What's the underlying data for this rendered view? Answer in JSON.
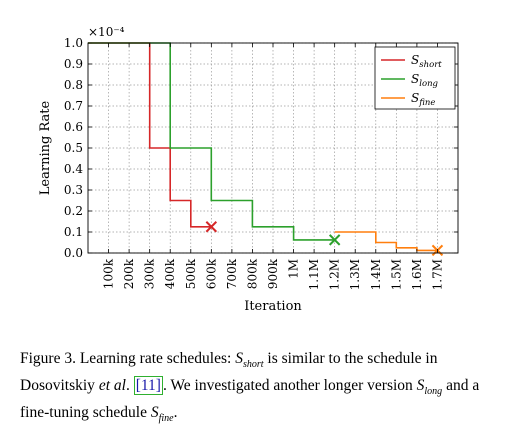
{
  "chart_data": {
    "type": "line",
    "step": true,
    "ylabel": "Learning Rate",
    "xlabel": "Iteration",
    "scale_label": "×10⁻⁴",
    "ylim": [
      0,
      1.0
    ],
    "xlim": [
      0,
      1800000
    ],
    "yticks": [
      0.0,
      0.1,
      0.2,
      0.3,
      0.4,
      0.5,
      0.6,
      0.7,
      0.8,
      0.9,
      1.0
    ],
    "ytick_labels": [
      "0.0",
      "0.1",
      "0.2",
      "0.3",
      "0.4",
      "0.5",
      "0.6",
      "0.7",
      "0.8",
      "0.9",
      "1.0"
    ],
    "xticks": [
      100000,
      200000,
      300000,
      400000,
      500000,
      600000,
      700000,
      800000,
      900000,
      1000000,
      1100000,
      1200000,
      1300000,
      1400000,
      1500000,
      1600000,
      1700000
    ],
    "xtick_labels": [
      "100k",
      "200k",
      "300k",
      "400k",
      "500k",
      "600k",
      "700k",
      "800k",
      "900k",
      "1M",
      "1.1M",
      "1.2M",
      "1.3M",
      "1.4M",
      "1.5M",
      "1.6M",
      "1.7M"
    ],
    "grid": true,
    "legend_position": "top-right",
    "series": [
      {
        "name": "S_short",
        "legend_main": "S",
        "legend_sub": "short",
        "color": "#d62728",
        "points": [
          [
            0,
            1.0
          ],
          [
            300000,
            1.0
          ],
          [
            300000,
            0.5
          ],
          [
            400000,
            0.5
          ],
          [
            400000,
            0.25
          ],
          [
            500000,
            0.25
          ],
          [
            500000,
            0.125
          ],
          [
            600000,
            0.125
          ]
        ],
        "end_marker": [
          600000,
          0.125
        ]
      },
      {
        "name": "S_long",
        "legend_main": "S",
        "legend_sub": "long",
        "color": "#2ca02c",
        "points": [
          [
            0,
            1.0
          ],
          [
            400000,
            1.0
          ],
          [
            400000,
            0.5
          ],
          [
            600000,
            0.5
          ],
          [
            600000,
            0.25
          ],
          [
            800000,
            0.25
          ],
          [
            800000,
            0.125
          ],
          [
            1000000,
            0.125
          ],
          [
            1000000,
            0.0625
          ],
          [
            1200000,
            0.0625
          ]
        ],
        "end_marker": [
          1200000,
          0.0625
        ]
      },
      {
        "name": "S_fine",
        "legend_main": "S",
        "legend_sub": "fine",
        "color": "#ff7f0e",
        "points": [
          [
            1200000,
            0.1
          ],
          [
            1400000,
            0.1
          ],
          [
            1400000,
            0.05
          ],
          [
            1500000,
            0.05
          ],
          [
            1500000,
            0.025
          ],
          [
            1600000,
            0.025
          ],
          [
            1600000,
            0.0125
          ],
          [
            1700000,
            0.0125
          ]
        ],
        "end_marker": [
          1700000,
          0.0125
        ]
      }
    ]
  },
  "caption": {
    "figure_label": "Figure 3.",
    "part1": " Learning rate schedules: ",
    "s_main": "S",
    "s_short_sub": "short",
    "part2": " is similar to the schedule in Dosovitskiy ",
    "et_al": "et al",
    "part3": ". ",
    "citation": "[11]",
    "part4": ". We investigated another longer version ",
    "s_long_sub": "long",
    "part5": " and a fine-tuning schedule ",
    "s_fine_sub": "fine",
    "part6": "."
  }
}
